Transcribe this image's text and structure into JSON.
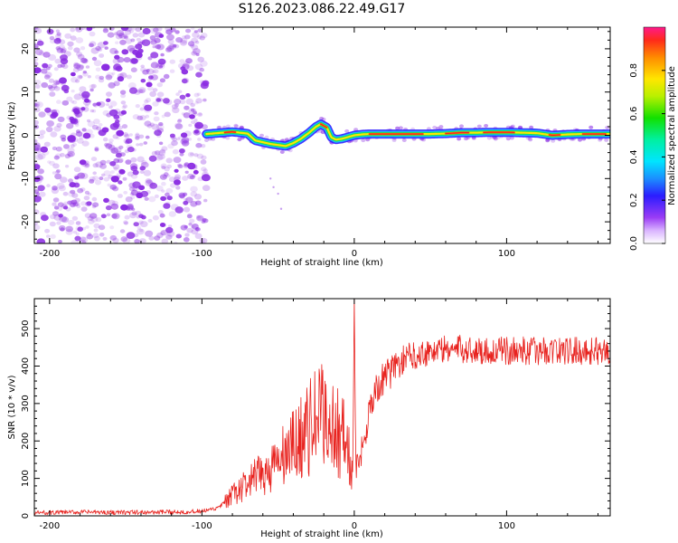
{
  "figure_title": "S126.2023.086.22.49.G17",
  "colors": {
    "snr_line": "#e8231f",
    "noise_purple": "#8a2be2",
    "axis": "#000000"
  },
  "chart_data": [
    {
      "type": "heatmap",
      "title": "S126.2023.086.22.49.G17",
      "xlabel": "Height of straight line (km)",
      "ylabel": "Frequency (Hz)",
      "xlim": [
        -210,
        168
      ],
      "ylim": [
        -25,
        25
      ],
      "x_ticks": [
        -200,
        -100,
        0,
        100
      ],
      "y_ticks": [
        -20,
        -10,
        0,
        10,
        20
      ],
      "x_tick_labels": [
        "-200",
        "-100",
        "0",
        "100"
      ],
      "y_tick_labels": [
        "-20",
        "-10",
        "0",
        "10",
        "20"
      ],
      "noise_region_x": [
        -210,
        -97
      ],
      "signal_track": {
        "x": [
          -97,
          -90,
          -80,
          -70,
          -65,
          -55,
          -45,
          -40,
          -35,
          -30,
          -25,
          -22,
          -18,
          -15,
          -12,
          -8,
          -5,
          0,
          5,
          10,
          20,
          30,
          40,
          50,
          60,
          70,
          80,
          90,
          100,
          110,
          120,
          130,
          140,
          150,
          160,
          168
        ],
        "frequency_hz": [
          0.3,
          0.5,
          0.8,
          0.4,
          -1.2,
          -2.0,
          -2.5,
          -1.8,
          -0.8,
          0.5,
          2.0,
          2.6,
          1.8,
          -0.5,
          -1.0,
          -0.8,
          -0.5,
          0.0,
          0.2,
          0.3,
          0.3,
          0.3,
          0.3,
          0.3,
          0.4,
          0.6,
          0.6,
          0.7,
          0.7,
          0.6,
          0.5,
          0.0,
          0.2,
          0.3,
          0.3,
          0.3
        ]
      },
      "colorbar": {
        "label": "Normalized spectral amplitude",
        "range": [
          0.0,
          1.0
        ],
        "ticks": [
          0.0,
          0.2,
          0.4,
          0.6,
          0.8
        ],
        "tick_labels": [
          "0.0",
          "0.2",
          "0.4",
          "0.6",
          "0.8"
        ]
      }
    },
    {
      "type": "line",
      "title": "",
      "xlabel": "Height of straight line (km)",
      "ylabel": "SNR (10 * v/v)",
      "xlim": [
        -210,
        168
      ],
      "ylim": [
        0,
        580
      ],
      "x_ticks": [
        -200,
        -100,
        0,
        100
      ],
      "y_ticks": [
        0,
        100,
        200,
        300,
        400,
        500
      ],
      "x_tick_labels": [
        "-200",
        "-100",
        "0",
        "100"
      ],
      "y_tick_labels": [
        "0",
        "100",
        "200",
        "300",
        "400",
        "500"
      ],
      "series": [
        {
          "name": "SNR",
          "x": [
            -210,
            -180,
            -150,
            -120,
            -100,
            -95,
            -90,
            -85,
            -80,
            -75,
            -70,
            -65,
            -60,
            -55,
            -50,
            -45,
            -40,
            -35,
            -30,
            -25,
            -20,
            -15,
            -10,
            -5,
            -3,
            -1,
            0,
            1,
            3,
            5,
            8,
            10,
            15,
            20,
            25,
            30,
            35,
            40,
            45,
            50,
            60,
            70,
            80,
            90,
            100,
            110,
            120,
            130,
            140,
            150,
            160,
            168
          ],
          "values": [
            8,
            10,
            9,
            10,
            12,
            15,
            20,
            35,
            55,
            70,
            85,
            100,
            110,
            125,
            140,
            165,
            185,
            210,
            230,
            260,
            270,
            240,
            220,
            200,
            150,
            90,
            580,
            110,
            140,
            180,
            240,
            290,
            340,
            370,
            390,
            410,
            425,
            430,
            435,
            440,
            445,
            445,
            442,
            440,
            440,
            442,
            440,
            442,
            440,
            441,
            440,
            440
          ]
        }
      ]
    }
  ]
}
